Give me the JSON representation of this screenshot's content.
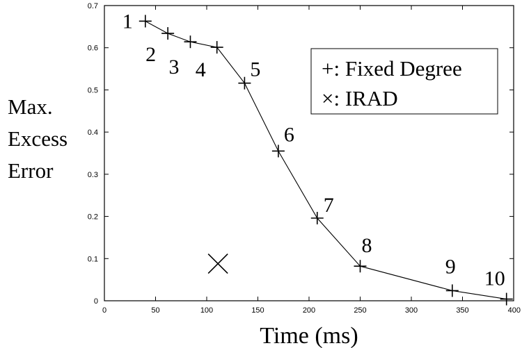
{
  "chart_data": {
    "type": "line",
    "title": "",
    "xlabel": "Time (ms)",
    "ylabel_lines": [
      "Max.",
      "Excess",
      "Error"
    ],
    "xlim": [
      0,
      400
    ],
    "ylim": [
      0,
      0.7
    ],
    "xticks": [
      0,
      50,
      100,
      150,
      200,
      250,
      300,
      350,
      400
    ],
    "yticks": [
      0,
      0.1,
      0.2,
      0.3,
      0.4,
      0.5,
      0.6,
      0.7
    ],
    "xtick_labels": [
      "0",
      "50",
      "100",
      "150",
      "200",
      "250",
      "300",
      "350",
      "400"
    ],
    "ytick_labels": [
      "0",
      "0.1",
      "0.2",
      "0.3",
      "0.4",
      "0.5",
      "0.6",
      "0.7"
    ],
    "grid": false,
    "legend_position": "top-right",
    "series": [
      {
        "name": "Fixed Degree",
        "legend_label": "+: Fixed Degree",
        "marker": "plus",
        "line": true,
        "color": "#000000",
        "points": [
          {
            "x": 40,
            "y": 0.663,
            "label": "1"
          },
          {
            "x": 62,
            "y": 0.634,
            "label": "2"
          },
          {
            "x": 84,
            "y": 0.614,
            "label": "3"
          },
          {
            "x": 110,
            "y": 0.601,
            "label": "4"
          },
          {
            "x": 137,
            "y": 0.516,
            "label": "5"
          },
          {
            "x": 170,
            "y": 0.355,
            "label": "6"
          },
          {
            "x": 208,
            "y": 0.196,
            "label": "7"
          },
          {
            "x": 250,
            "y": 0.082,
            "label": "8"
          },
          {
            "x": 340,
            "y": 0.024,
            "label": "9"
          },
          {
            "x": 393,
            "y": 0.004,
            "label": "10"
          }
        ]
      },
      {
        "name": "IRAD",
        "legend_label": "×: IRAD",
        "marker": "x",
        "line": false,
        "color": "#000000",
        "points": [
          {
            "x": 111,
            "y": 0.088
          }
        ]
      }
    ]
  }
}
